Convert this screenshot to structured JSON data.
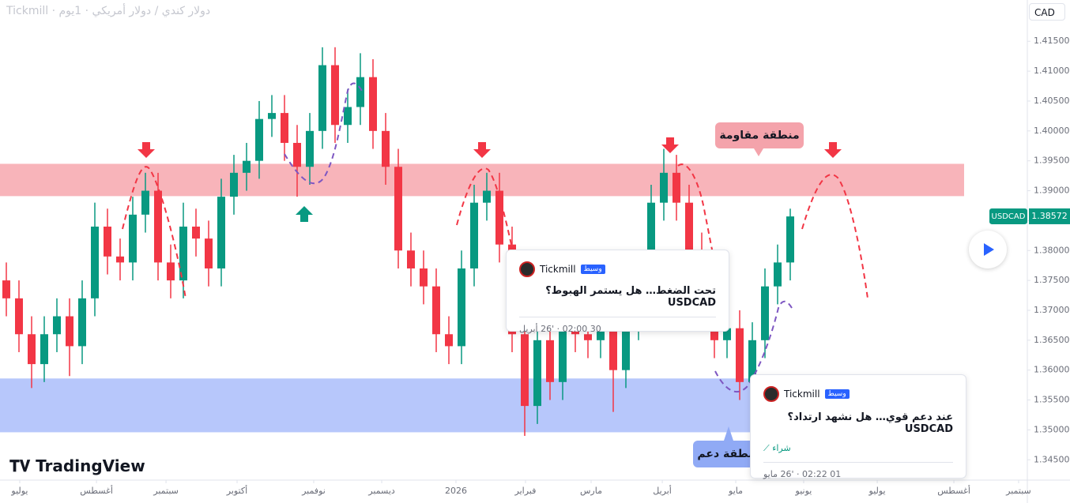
{
  "header": {
    "title": "دولار كندي / دولار أمريكي · 1يوم · Tickmill",
    "currency": "CAD"
  },
  "chart_data": {
    "type": "candlestick",
    "up_color": "#089981",
    "down_color": "#f23645",
    "x": [
      0,
      1,
      2,
      3,
      4,
      5,
      6,
      7,
      8,
      9,
      10,
      11,
      12,
      13,
      14,
      15,
      16,
      17,
      18,
      19,
      20,
      21,
      22,
      23,
      24,
      25,
      26,
      27,
      28,
      29,
      30,
      31,
      32,
      33,
      34,
      35,
      36,
      37,
      38,
      39,
      40,
      41,
      42,
      43,
      44,
      45,
      46,
      47,
      48,
      49,
      50,
      51,
      52,
      53,
      54,
      55,
      56,
      57,
      58,
      59,
      60,
      61,
      62
    ],
    "open": [
      1.375,
      1.372,
      1.366,
      1.361,
      1.366,
      1.369,
      1.364,
      1.372,
      1.384,
      1.379,
      1.378,
      1.386,
      1.39,
      1.378,
      1.375,
      1.384,
      1.382,
      1.377,
      1.389,
      1.393,
      1.395,
      1.402,
      1.403,
      1.398,
      1.394,
      1.4,
      1.411,
      1.401,
      1.404,
      1.409,
      1.4,
      1.394,
      1.38,
      1.377,
      1.374,
      1.366,
      1.364,
      1.377,
      1.388,
      1.39,
      1.381,
      1.366,
      1.354,
      1.365,
      1.358,
      1.367,
      1.366,
      1.365,
      1.367,
      1.36,
      1.368,
      1.374,
      1.388,
      1.393,
      1.388,
      1.38,
      1.37,
      1.365,
      1.367,
      1.358,
      1.365,
      1.374,
      1.378
    ],
    "high": [
      1.378,
      1.375,
      1.369,
      1.369,
      1.372,
      1.372,
      1.375,
      1.388,
      1.387,
      1.382,
      1.389,
      1.393,
      1.393,
      1.381,
      1.388,
      1.387,
      1.385,
      1.392,
      1.396,
      1.398,
      1.405,
      1.406,
      1.406,
      1.401,
      1.403,
      1.414,
      1.414,
      1.407,
      1.413,
      1.412,
      1.403,
      1.397,
      1.383,
      1.38,
      1.377,
      1.369,
      1.38,
      1.391,
      1.393,
      1.393,
      1.384,
      1.369,
      1.368,
      1.368,
      1.37,
      1.37,
      1.369,
      1.37,
      1.37,
      1.371,
      1.377,
      1.391,
      1.397,
      1.396,
      1.391,
      1.383,
      1.373,
      1.37,
      1.37,
      1.368,
      1.377,
      1.381,
      1.387
    ],
    "low": [
      1.369,
      1.363,
      1.357,
      1.358,
      1.363,
      1.359,
      1.361,
      1.369,
      1.376,
      1.375,
      1.375,
      1.383,
      1.375,
      1.372,
      1.372,
      1.379,
      1.374,
      1.374,
      1.386,
      1.39,
      1.392,
      1.399,
      1.395,
      1.389,
      1.391,
      1.397,
      1.398,
      1.398,
      1.401,
      1.397,
      1.391,
      1.377,
      1.374,
      1.371,
      1.363,
      1.361,
      1.361,
      1.374,
      1.385,
      1.378,
      1.363,
      1.349,
      1.351,
      1.355,
      1.355,
      1.363,
      1.362,
      1.362,
      1.353,
      1.357,
      1.365,
      1.371,
      1.385,
      1.385,
      1.377,
      1.367,
      1.362,
      1.362,
      1.355,
      1.355,
      1.362,
      1.371,
      1.375
    ],
    "close": [
      1.372,
      1.366,
      1.361,
      1.366,
      1.369,
      1.364,
      1.372,
      1.384,
      1.379,
      1.378,
      1.386,
      1.39,
      1.378,
      1.375,
      1.384,
      1.382,
      1.377,
      1.389,
      1.393,
      1.395,
      1.402,
      1.403,
      1.398,
      1.394,
      1.4,
      1.411,
      1.401,
      1.404,
      1.409,
      1.4,
      1.394,
      1.38,
      1.377,
      1.374,
      1.366,
      1.364,
      1.377,
      1.388,
      1.39,
      1.381,
      1.366,
      1.354,
      1.365,
      1.358,
      1.367,
      1.366,
      1.365,
      1.367,
      1.36,
      1.368,
      1.374,
      1.388,
      1.393,
      1.388,
      1.38,
      1.37,
      1.365,
      1.367,
      1.358,
      1.365,
      1.374,
      1.378,
      1.3857
    ],
    "xlim": [
      -0.5,
      80.75
    ],
    "xticks": [
      {
        "value": 1.06,
        "label": "يوليو"
      },
      {
        "value": 7.13,
        "label": "أغسطس"
      },
      {
        "value": 12.63,
        "label": "سبتمبر"
      },
      {
        "value": 18.25,
        "label": "أكتوبر"
      },
      {
        "value": 24.31,
        "label": "نوفمبر"
      },
      {
        "value": 29.69,
        "label": "ديسمبر"
      },
      {
        "value": 35.56,
        "label": "2026"
      },
      {
        "value": 41.06,
        "label": "فبراير"
      },
      {
        "value": 46.25,
        "label": "مارس"
      },
      {
        "value": 51.88,
        "label": "أبريل"
      },
      {
        "value": 57.69,
        "label": "مايو"
      },
      {
        "value": 63.06,
        "label": "يونيو"
      },
      {
        "value": 68.88,
        "label": "يوليو"
      },
      {
        "value": 74.94,
        "label": "أغسطس"
      },
      {
        "value": 80.06,
        "label": "سبتمبر"
      }
    ],
    "ylim": [
      1.3416,
      1.4219
    ],
    "yticks": [
      {
        "value": 1.345,
        "label": "1.34500"
      },
      {
        "value": 1.35,
        "label": "1.35000"
      },
      {
        "value": 1.355,
        "label": "1.35500"
      },
      {
        "value": 1.36,
        "label": "1.36000"
      },
      {
        "value": 1.365,
        "label": "1.36500"
      },
      {
        "value": 1.37,
        "label": "1.37000"
      },
      {
        "value": 1.375,
        "label": "1.37500"
      },
      {
        "value": 1.38,
        "label": "1.38000"
      },
      {
        "value": 1.385,
        "label": "1.38500"
      },
      {
        "value": 1.39,
        "label": "1.39000"
      },
      {
        "value": 1.395,
        "label": "1.39500"
      },
      {
        "value": 1.4,
        "label": "1.40000"
      },
      {
        "value": 1.405,
        "label": "1.40500"
      },
      {
        "value": 1.41,
        "label": "1.41000"
      },
      {
        "value": 1.415,
        "label": "1.41500"
      }
    ],
    "grid": false,
    "zones": [
      {
        "name": "منطقة مقاومة",
        "low": 1.3891,
        "high": 1.3945,
        "color": "#f8b4ba",
        "label_color": "#f4a3ab"
      },
      {
        "name": "منطقة دعم",
        "low": 1.3496,
        "high": 1.3586,
        "color": "#b7c7fb",
        "label_color": "#90aaf5"
      }
    ],
    "last_price": {
      "label": "USDCAD",
      "value": 1.38572,
      "color": "#089981"
    }
  },
  "ideas": [
    {
      "author": "Tickmill",
      "badge": "وسيط",
      "title": "تحت الضغط… هل يستمر الهبوط؟ USDCAD",
      "date": "30 02:00 · '26 أبريل"
    },
    {
      "author": "Tickmill",
      "badge": "وسيط",
      "title": "عند دعم قوي… هل نشهد ارتداد؟ USDCAD",
      "action": "شراء",
      "date": "01 02:22 · '26 مايو"
    }
  ],
  "logo": "TradingView"
}
